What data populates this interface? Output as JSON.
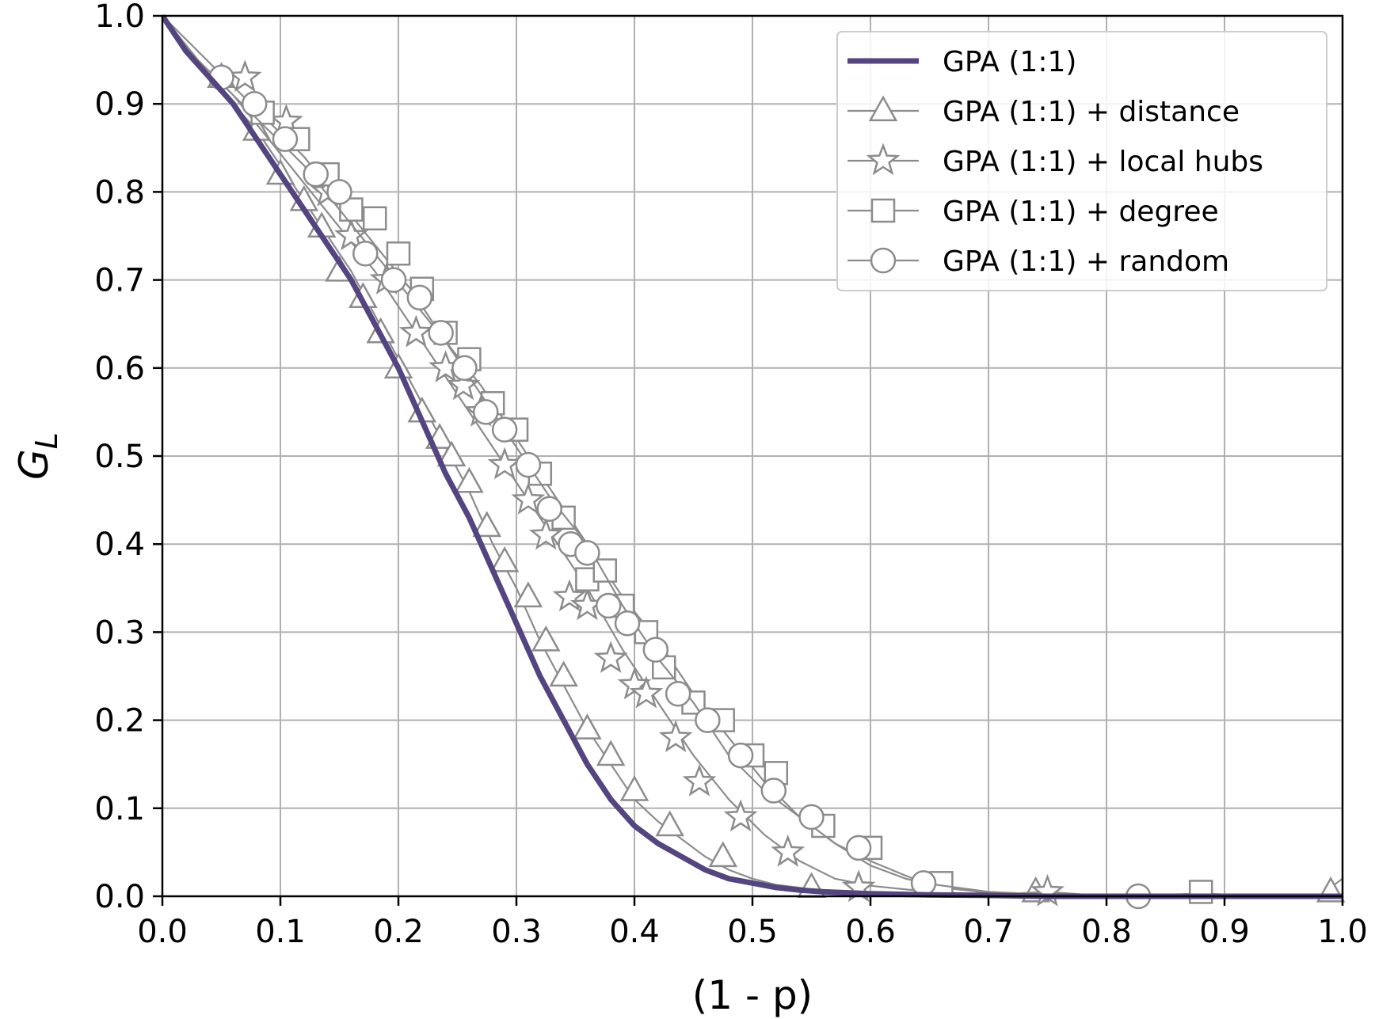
{
  "chart_data": {
    "type": "line",
    "title": "",
    "xlabel": "(1 - p)",
    "ylabel_main": "G",
    "ylabel_sub": "L",
    "xlim": [
      0,
      1
    ],
    "ylim": [
      0,
      1
    ],
    "xticks": [
      "0.0",
      "0.1",
      "0.2",
      "0.3",
      "0.4",
      "0.5",
      "0.6",
      "0.7",
      "0.8",
      "0.9",
      "1.0"
    ],
    "yticks": [
      "0.0",
      "0.1",
      "0.2",
      "0.3",
      "0.4",
      "0.5",
      "0.6",
      "0.7",
      "0.8",
      "0.9",
      "1.0"
    ],
    "grid": true,
    "legend_position": "top-right",
    "colors": {
      "main_line": "#54447f",
      "marker_lines": "#8c8c8c",
      "grid": "#b0b0b0"
    },
    "series": [
      {
        "name": "GPA (1:1)",
        "marker": "none",
        "x": [
          0.0,
          0.02,
          0.04,
          0.06,
          0.08,
          0.1,
          0.12,
          0.14,
          0.16,
          0.18,
          0.2,
          0.22,
          0.24,
          0.26,
          0.28,
          0.3,
          0.32,
          0.34,
          0.36,
          0.38,
          0.4,
          0.42,
          0.44,
          0.46,
          0.48,
          0.5,
          0.52,
          0.54,
          0.56,
          0.6,
          0.65,
          0.7,
          0.75,
          0.8,
          0.9,
          1.0
        ],
        "y": [
          1.0,
          0.96,
          0.93,
          0.9,
          0.86,
          0.82,
          0.78,
          0.74,
          0.7,
          0.65,
          0.6,
          0.54,
          0.48,
          0.43,
          0.37,
          0.31,
          0.25,
          0.2,
          0.15,
          0.11,
          0.08,
          0.06,
          0.045,
          0.03,
          0.02,
          0.015,
          0.01,
          0.007,
          0.005,
          0.003,
          0.0015,
          0.001,
          0.0,
          0.0,
          0.0,
          0.0
        ]
      },
      {
        "name": "GPA (1:1) + distance",
        "marker": "triangle",
        "x": [
          0.0,
          0.02,
          0.04,
          0.06,
          0.08,
          0.1,
          0.12,
          0.14,
          0.16,
          0.18,
          0.2,
          0.22,
          0.24,
          0.26,
          0.28,
          0.3,
          0.32,
          0.34,
          0.36,
          0.38,
          0.4,
          0.42,
          0.44,
          0.46,
          0.48,
          0.5,
          0.52,
          0.55,
          0.6,
          0.65,
          0.7,
          0.8,
          0.9,
          0.98,
          1.0
        ],
        "y": [
          1.0,
          0.96,
          0.93,
          0.9,
          0.87,
          0.83,
          0.79,
          0.75,
          0.71,
          0.66,
          0.61,
          0.56,
          0.51,
          0.46,
          0.4,
          0.35,
          0.29,
          0.24,
          0.19,
          0.15,
          0.11,
          0.085,
          0.065,
          0.045,
          0.03,
          0.02,
          0.013,
          0.008,
          0.004,
          0.002,
          0.001,
          0.0,
          0.0,
          0.0,
          0.02
        ]
      },
      {
        "name": "GPA (1:1) + local hubs",
        "marker": "star",
        "x": [
          0.0,
          0.03,
          0.06,
          0.09,
          0.12,
          0.15,
          0.18,
          0.21,
          0.24,
          0.27,
          0.3,
          0.33,
          0.36,
          0.39,
          0.42,
          0.45,
          0.48,
          0.51,
          0.54,
          0.57,
          0.6,
          0.65,
          0.7,
          0.75,
          0.8,
          0.9,
          1.0
        ],
        "y": [
          1.0,
          0.95,
          0.91,
          0.86,
          0.81,
          0.76,
          0.71,
          0.65,
          0.59,
          0.53,
          0.47,
          0.41,
          0.35,
          0.28,
          0.22,
          0.16,
          0.11,
          0.07,
          0.04,
          0.02,
          0.012,
          0.005,
          0.002,
          0.005,
          0.0,
          0.0,
          0.0
        ]
      },
      {
        "name": "GPA (1:1) + degree",
        "marker": "square",
        "x": [
          0.0,
          0.03,
          0.06,
          0.09,
          0.12,
          0.15,
          0.18,
          0.21,
          0.24,
          0.27,
          0.3,
          0.33,
          0.36,
          0.39,
          0.42,
          0.45,
          0.48,
          0.51,
          0.54,
          0.57,
          0.6,
          0.63,
          0.66,
          0.7,
          0.75,
          0.8,
          0.88,
          0.95,
          1.0
        ],
        "y": [
          1.0,
          0.96,
          0.92,
          0.88,
          0.84,
          0.79,
          0.74,
          0.69,
          0.63,
          0.58,
          0.52,
          0.46,
          0.4,
          0.34,
          0.29,
          0.23,
          0.18,
          0.13,
          0.09,
          0.06,
          0.035,
          0.02,
          0.01,
          0.004,
          0.002,
          0.0,
          0.003,
          0.0,
          0.0
        ]
      },
      {
        "name": "GPA (1:1) + random",
        "marker": "circle",
        "x": [
          0.0,
          0.03,
          0.06,
          0.09,
          0.12,
          0.15,
          0.18,
          0.21,
          0.24,
          0.27,
          0.3,
          0.33,
          0.36,
          0.39,
          0.42,
          0.45,
          0.48,
          0.51,
          0.54,
          0.57,
          0.6,
          0.645,
          0.7,
          0.75,
          0.827,
          0.9,
          1.0
        ],
        "y": [
          1.0,
          0.95,
          0.91,
          0.87,
          0.83,
          0.78,
          0.73,
          0.68,
          0.63,
          0.57,
          0.51,
          0.45,
          0.4,
          0.33,
          0.27,
          0.22,
          0.16,
          0.12,
          0.09,
          0.06,
          0.04,
          0.015,
          0.005,
          0.002,
          0.001,
          0.0,
          0.0
        ]
      }
    ],
    "markers": {
      "triangle": [
        [
          0.05,
          0.93
        ],
        [
          0.08,
          0.87
        ],
        [
          0.1,
          0.82
        ],
        [
          0.12,
          0.79
        ],
        [
          0.135,
          0.76
        ],
        [
          0.15,
          0.71
        ],
        [
          0.17,
          0.68
        ],
        [
          0.185,
          0.64
        ],
        [
          0.2,
          0.6
        ],
        [
          0.22,
          0.55
        ],
        [
          0.235,
          0.52
        ],
        [
          0.245,
          0.5
        ],
        [
          0.26,
          0.47
        ],
        [
          0.275,
          0.42
        ],
        [
          0.29,
          0.38
        ],
        [
          0.31,
          0.34
        ],
        [
          0.325,
          0.29
        ],
        [
          0.34,
          0.25
        ],
        [
          0.36,
          0.19
        ],
        [
          0.38,
          0.16
        ],
        [
          0.4,
          0.12
        ],
        [
          0.43,
          0.08
        ],
        [
          0.475,
          0.045
        ],
        [
          0.55,
          0.01
        ],
        [
          0.74,
          0.005
        ],
        [
          0.99,
          0.005
        ]
      ],
      "star": [
        [
          0.07,
          0.93
        ],
        [
          0.105,
          0.88
        ],
        [
          0.14,
          0.8
        ],
        [
          0.16,
          0.75
        ],
        [
          0.19,
          0.7
        ],
        [
          0.215,
          0.64
        ],
        [
          0.24,
          0.6
        ],
        [
          0.255,
          0.58
        ],
        [
          0.27,
          0.55
        ],
        [
          0.29,
          0.49
        ],
        [
          0.31,
          0.45
        ],
        [
          0.325,
          0.41
        ],
        [
          0.345,
          0.34
        ],
        [
          0.36,
          0.33
        ],
        [
          0.38,
          0.27
        ],
        [
          0.4,
          0.24
        ],
        [
          0.41,
          0.23
        ],
        [
          0.435,
          0.18
        ],
        [
          0.455,
          0.13
        ],
        [
          0.49,
          0.09
        ],
        [
          0.53,
          0.05
        ],
        [
          0.59,
          0.01
        ],
        [
          0.75,
          0.005
        ]
      ],
      "square": [
        [
          0.085,
          0.89
        ],
        [
          0.115,
          0.86
        ],
        [
          0.14,
          0.82
        ],
        [
          0.16,
          0.78
        ],
        [
          0.18,
          0.77
        ],
        [
          0.2,
          0.73
        ],
        [
          0.22,
          0.69
        ],
        [
          0.24,
          0.64
        ],
        [
          0.26,
          0.61
        ],
        [
          0.28,
          0.56
        ],
        [
          0.3,
          0.53
        ],
        [
          0.32,
          0.48
        ],
        [
          0.34,
          0.43
        ],
        [
          0.36,
          0.36
        ],
        [
          0.375,
          0.37
        ],
        [
          0.39,
          0.33
        ],
        [
          0.41,
          0.3
        ],
        [
          0.425,
          0.26
        ],
        [
          0.45,
          0.22
        ],
        [
          0.475,
          0.2
        ],
        [
          0.5,
          0.16
        ],
        [
          0.52,
          0.14
        ],
        [
          0.56,
          0.08
        ],
        [
          0.6,
          0.055
        ],
        [
          0.66,
          0.015
        ],
        [
          0.88,
          0.005
        ]
      ],
      "circle": [
        [
          0.05,
          0.93
        ],
        [
          0.078,
          0.9
        ],
        [
          0.104,
          0.86
        ],
        [
          0.13,
          0.82
        ],
        [
          0.15,
          0.8
        ],
        [
          0.172,
          0.73
        ],
        [
          0.196,
          0.7
        ],
        [
          0.218,
          0.68
        ],
        [
          0.236,
          0.64
        ],
        [
          0.256,
          0.6
        ],
        [
          0.274,
          0.55
        ],
        [
          0.29,
          0.53
        ],
        [
          0.31,
          0.49
        ],
        [
          0.328,
          0.44
        ],
        [
          0.346,
          0.4
        ],
        [
          0.36,
          0.39
        ],
        [
          0.378,
          0.33
        ],
        [
          0.394,
          0.31
        ],
        [
          0.418,
          0.28
        ],
        [
          0.437,
          0.23
        ],
        [
          0.462,
          0.2
        ],
        [
          0.49,
          0.16
        ],
        [
          0.518,
          0.12
        ],
        [
          0.55,
          0.09
        ],
        [
          0.59,
          0.055
        ],
        [
          0.645,
          0.015
        ],
        [
          0.827,
          0.0
        ]
      ]
    }
  }
}
